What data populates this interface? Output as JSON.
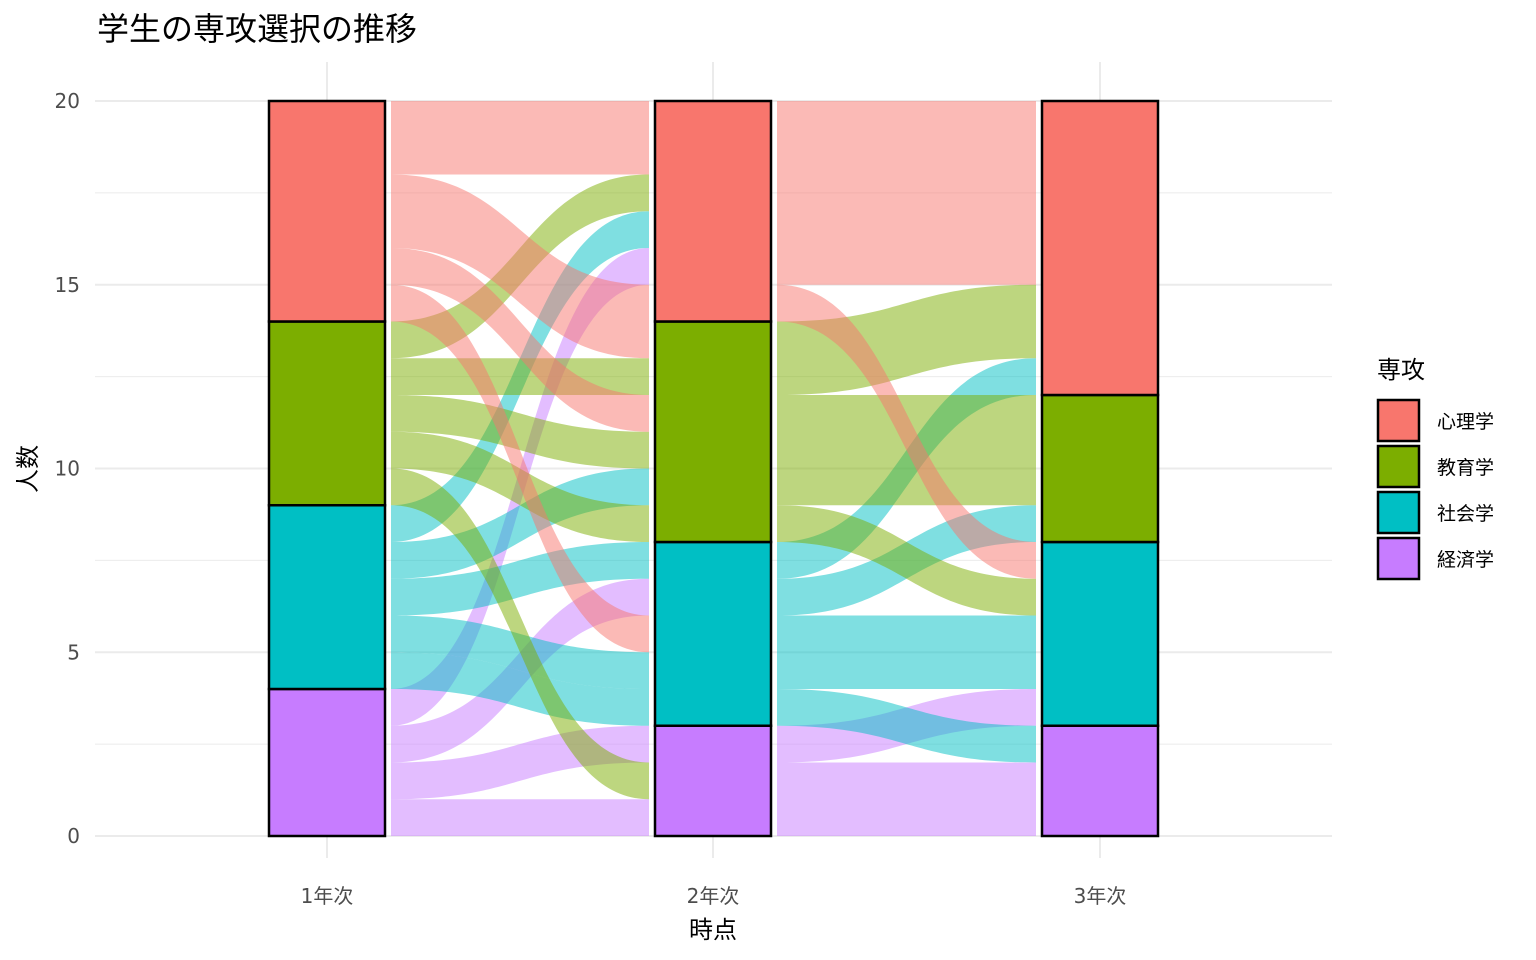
{
  "chart_data": {
    "type": "alluvial",
    "title": "学生の専攻選択の推移",
    "xlabel": "時点",
    "ylabel": "人数",
    "ylim": [
      0,
      20
    ],
    "yticks": [
      0,
      5,
      10,
      15,
      20
    ],
    "grid": true,
    "legend_position": "right",
    "legend_title": "専攻",
    "categories": [
      "1年次",
      "2年次",
      "3年次"
    ],
    "majors": [
      {
        "name": "心理学",
        "color": "#F8766D"
      },
      {
        "name": "教育学",
        "color": "#7CAE00"
      },
      {
        "name": "社会学",
        "color": "#00BFC4"
      },
      {
        "name": "経済学",
        "color": "#C77CFF"
      }
    ],
    "stack_order_bottom_to_top": [
      "経済学",
      "社会学",
      "教育学",
      "心理学"
    ],
    "strata": {
      "1年次": {
        "心理学": 6,
        "教育学": 5,
        "社会学": 5,
        "経済学": 4
      },
      "2年次": {
        "心理学": 6,
        "教育学": 6,
        "社会学": 5,
        "経済学": 3
      },
      "3年次": {
        "心理学": 8,
        "教育学": 4,
        "社会学": 5,
        "経済学": 3
      }
    },
    "flows_1_to_2": [
      {
        "y0": [
          0,
          1
        ],
        "y1": [
          0,
          1
        ],
        "fill": "経済学"
      },
      {
        "y0": [
          1,
          2
        ],
        "y1": [
          2,
          3
        ],
        "fill": "経済学"
      },
      {
        "y0": [
          2,
          3
        ],
        "y1": [
          6,
          7
        ],
        "fill": "経済学"
      },
      {
        "y0": [
          3,
          4
        ],
        "y1": [
          15,
          16
        ],
        "fill": "経済学"
      },
      {
        "y0": [
          4,
          5
        ],
        "y1": [
          3,
          4
        ],
        "fill": "社会学"
      },
      {
        "y0": [
          5,
          6
        ],
        "y1": [
          4,
          5
        ],
        "fill": "社会学"
      },
      {
        "y0": [
          6,
          7
        ],
        "y1": [
          7,
          8
        ],
        "fill": "社会学"
      },
      {
        "y0": [
          7,
          8
        ],
        "y1": [
          9,
          10
        ],
        "fill": "社会学"
      },
      {
        "y0": [
          8,
          9
        ],
        "y1": [
          16,
          17
        ],
        "fill": "社会学"
      },
      {
        "y0": [
          9,
          10
        ],
        "y1": [
          1,
          2
        ],
        "fill": "教育学"
      },
      {
        "y0": [
          10,
          11
        ],
        "y1": [
          8,
          9
        ],
        "fill": "教育学"
      },
      {
        "y0": [
          11,
          12
        ],
        "y1": [
          10,
          11
        ],
        "fill": "教育学"
      },
      {
        "y0": [
          12,
          13
        ],
        "y1": [
          12,
          13
        ],
        "fill": "教育学"
      },
      {
        "y0": [
          13,
          14
        ],
        "y1": [
          17,
          18
        ],
        "fill": "教育学"
      },
      {
        "y0": [
          14,
          15
        ],
        "y1": [
          5,
          6
        ],
        "fill": "心理学"
      },
      {
        "y0": [
          15,
          16
        ],
        "y1": [
          11,
          12
        ],
        "fill": "心理学"
      },
      {
        "y0": [
          16,
          18
        ],
        "y1": [
          13,
          15
        ],
        "fill": "心理学"
      },
      {
        "y0": [
          18,
          20
        ],
        "y1": [
          18,
          20
        ],
        "fill": "心理学"
      }
    ],
    "flows_2_to_3": [
      {
        "y0": [
          0,
          2
        ],
        "y1": [
          0,
          2
        ],
        "fill": "経済学"
      },
      {
        "y0": [
          2,
          3
        ],
        "y1": [
          3,
          4
        ],
        "fill": "経済学"
      },
      {
        "y0": [
          3,
          4
        ],
        "y1": [
          2,
          3
        ],
        "fill": "社会学"
      },
      {
        "y0": [
          4,
          6
        ],
        "y1": [
          4,
          6
        ],
        "fill": "社会学"
      },
      {
        "y0": [
          6,
          7
        ],
        "y1": [
          8,
          9
        ],
        "fill": "社会学"
      },
      {
        "y0": [
          7,
          8
        ],
        "y1": [
          12,
          13
        ],
        "fill": "社会学"
      },
      {
        "y0": [
          8,
          9
        ],
        "y1": [
          6,
          7
        ],
        "fill": "教育学"
      },
      {
        "y0": [
          9,
          12
        ],
        "y1": [
          9,
          12
        ],
        "fill": "教育学"
      },
      {
        "y0": [
          12,
          14
        ],
        "y1": [
          13,
          15
        ],
        "fill": "教育学"
      },
      {
        "y0": [
          14,
          15
        ],
        "y1": [
          7,
          8
        ],
        "fill": "心理学"
      },
      {
        "y0": [
          15,
          20
        ],
        "y1": [
          15,
          20
        ],
        "fill": "心理学"
      }
    ]
  }
}
